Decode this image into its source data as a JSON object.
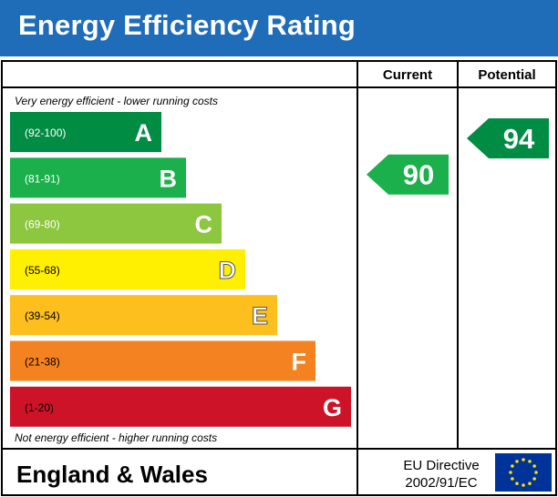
{
  "header": {
    "title": "Energy Efficiency Rating"
  },
  "columns": {
    "current": "Current",
    "potential": "Potential"
  },
  "notes": {
    "top": "Very energy efficient - lower running costs",
    "bottom": "Not energy efficient - higher running costs"
  },
  "footer": {
    "region": "England & Wales",
    "directive_line1": "EU Directive",
    "directive_line2": "2002/91/EC"
  },
  "chart_data": {
    "type": "bar",
    "title": "Energy Efficiency Rating",
    "categories": [
      "A",
      "B",
      "C",
      "D",
      "E",
      "F",
      "G"
    ],
    "ranges": [
      "(92-100)",
      "(81-91)",
      "(69-80)",
      "(55-68)",
      "(39-54)",
      "(21-38)",
      "(1-20)"
    ],
    "colors": [
      "#008c43",
      "#1bb04b",
      "#8dc63f",
      "#ffef00",
      "#fcbf1e",
      "#f58220",
      "#cd1327"
    ],
    "current": {
      "value": 90,
      "color": "#1bb04b"
    },
    "potential": {
      "value": 94,
      "color": "#008c43"
    }
  }
}
